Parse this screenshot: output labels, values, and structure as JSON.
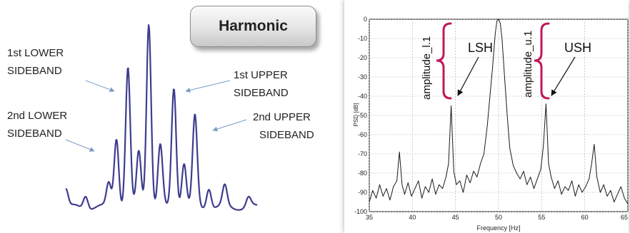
{
  "chart_data": [
    {
      "type": "line",
      "title": "",
      "labels": {
        "lsb1": [
          "1st LOWER",
          "SIDEBAND"
        ],
        "usb1": [
          "1st UPPER",
          "SIDEBAND"
        ],
        "lsb2": [
          "2nd LOWER",
          "SIDEBAND"
        ],
        "usb2": [
          "2nd  UPPER",
          "SIDEBAND"
        ]
      },
      "peaks": [
        {
          "x": 0.0,
          "y": 0.1
        },
        {
          "x": 0.104,
          "y": 0.07
        },
        {
          "x": 0.225,
          "y": 0.13
        },
        {
          "x": 0.265,
          "y": 0.38
        },
        {
          "x": 0.325,
          "y": 0.75
        },
        {
          "x": 0.382,
          "y": 0.3
        },
        {
          "x": 0.434,
          "y": 1.0
        },
        {
          "x": 0.494,
          "y": 0.33
        },
        {
          "x": 0.565,
          "y": 0.65
        },
        {
          "x": 0.618,
          "y": 0.24
        },
        {
          "x": 0.675,
          "y": 0.49
        },
        {
          "x": 0.748,
          "y": 0.11
        },
        {
          "x": 0.831,
          "y": 0.11
        },
        {
          "x": 0.955,
          "y": 0.05
        }
      ],
      "colors": {
        "line": "#3d3d8f",
        "arrow": "#7a9cc4"
      }
    },
    {
      "type": "line",
      "xlabel": "Frequency [Hz]",
      "ylabel": "PSD [dB]",
      "xlim": [
        35,
        65
      ],
      "ylim": [
        -100,
        0
      ],
      "xticks": [
        35,
        40,
        45,
        50,
        55,
        60,
        65
      ],
      "yticks": [
        0,
        -10,
        -20,
        -30,
        -40,
        -50,
        -60,
        -70,
        -80,
        -90,
        -100
      ],
      "grid": true,
      "annotations": {
        "lsh": "LSH",
        "ush": "USH",
        "amp_l": "amplitude_l.1",
        "amp_u": "amplitude_u.1"
      },
      "series": [
        {
          "x": [
            35.0,
            35.4,
            35.8,
            36.2,
            36.6,
            37.0,
            37.4,
            37.8,
            38.2,
            38.5,
            38.8,
            39.1,
            39.5,
            39.9,
            40.3,
            40.7,
            41.1,
            41.5,
            41.9,
            42.3,
            42.7,
            43.1,
            43.5,
            43.9,
            44.2,
            44.5,
            44.8,
            45.1,
            45.5,
            45.9,
            46.3,
            46.7,
            47.1,
            47.5,
            47.9,
            48.3,
            48.7,
            49.0,
            49.3,
            49.6,
            49.8,
            50.0,
            50.2,
            50.4,
            50.7,
            51.0,
            51.3,
            51.7,
            52.1,
            52.5,
            52.9,
            53.3,
            53.7,
            54.1,
            54.5,
            54.9,
            55.2,
            55.5,
            55.8,
            56.1,
            56.5,
            56.9,
            57.3,
            57.7,
            58.1,
            58.5,
            58.9,
            59.3,
            59.7,
            60.1,
            60.5,
            60.8,
            61.1,
            61.4,
            61.8,
            62.2,
            62.6,
            63.0,
            63.4,
            63.8,
            64.2,
            64.6,
            65.0
          ],
          "y": [
            -95,
            -89,
            -93,
            -86,
            -92,
            -88,
            -94,
            -87,
            -84,
            -69,
            -86,
            -91,
            -85,
            -92,
            -88,
            -84,
            -93,
            -87,
            -90,
            -83,
            -91,
            -86,
            -88,
            -82,
            -75,
            -45,
            -79,
            -86,
            -84,
            -90,
            -81,
            -85,
            -79,
            -82,
            -75,
            -70,
            -55,
            -40,
            -25,
            -8,
            -1,
            0,
            -2,
            -10,
            -30,
            -50,
            -67,
            -76,
            -80,
            -83,
            -79,
            -86,
            -82,
            -88,
            -83,
            -78,
            -66,
            -44,
            -75,
            -82,
            -88,
            -84,
            -91,
            -87,
            -89,
            -84,
            -92,
            -86,
            -90,
            -87,
            -83,
            -75,
            -65,
            -82,
            -90,
            -86,
            -92,
            -89,
            -95,
            -91,
            -87,
            -93,
            -96
          ]
        }
      ],
      "colors": {
        "line": "#1a1a1a",
        "brace": "#c2185b",
        "grid": "#aaaaaa"
      }
    }
  ]
}
